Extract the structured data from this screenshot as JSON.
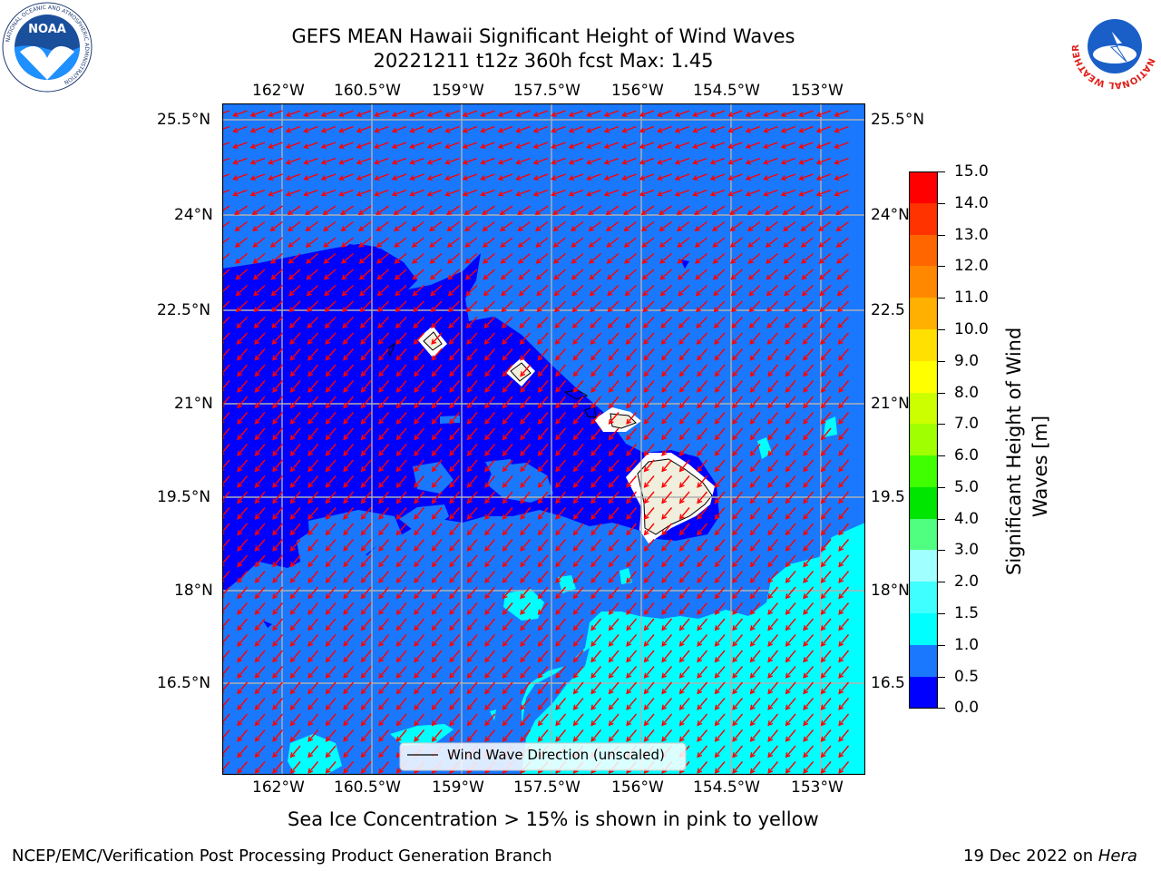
{
  "header": {
    "title_line1": "GEFS MEAN Hawaii Significant Height of Wind Waves",
    "title_line2": "20221211 t12z 360h fcst   Max: 1.45",
    "left_logo_text": "NOAA",
    "left_logo_ring_text": "NATIONAL OCEANIC AND ATMOSPHERIC ADMINISTRATION",
    "left_logo_bottom_text": "U.S. DEPARTMENT OF COMMERCE",
    "right_logo_ring_text": "NATIONAL WEATHER SERVICE"
  },
  "map": {
    "lon_labels": [
      "162°W",
      "160.5°W",
      "159°W",
      "157.5°W",
      "156°W",
      "154.5°W",
      "153°W"
    ],
    "lat_labels_left": [
      "25.5°N",
      "24°N",
      "22.5°N",
      "21°N",
      "19.5°N",
      "18°N",
      "16.5°N"
    ],
    "lat_labels_right": [
      "25.5°N",
      "24°N",
      "22.5",
      "21°N",
      "19.5",
      "18°N",
      "16.5"
    ],
    "legend_label": "Wind Wave Direction (unscaled)",
    "arrow_color": "#ff0000",
    "land_color": "#f0eedc"
  },
  "colorbar": {
    "label": "Significant Height of Wind Waves [m]",
    "label_line1": "Significant Height of Wind",
    "label_line2": "Waves [m]",
    "ticks": [
      "0.0",
      "0.5",
      "1.0",
      "1.5",
      "2.0",
      "3.0",
      "4.0",
      "5.0",
      "6.0",
      "7.0",
      "8.0",
      "9.0",
      "10.0",
      "11.0",
      "12.0",
      "13.0",
      "14.0",
      "15.0"
    ],
    "colors": [
      "#0000ff",
      "#1a78ff",
      "#00ffff",
      "#40ffff",
      "#a0ffff",
      "#50ff80",
      "#00e600",
      "#40ff00",
      "#a0ff00",
      "#ccff00",
      "#ffff00",
      "#ffe000",
      "#ffb000",
      "#ff8800",
      "#ff6600",
      "#ff3300",
      "#ff0000"
    ]
  },
  "footer": {
    "caption": "Sea Ice Concentration > 15% is shown in pink to yellow",
    "left": "NCEP/EMC/Verification Post Processing Product Generation Branch",
    "right_prefix": "19 Dec 2022 on ",
    "right_host": "Hera"
  }
}
